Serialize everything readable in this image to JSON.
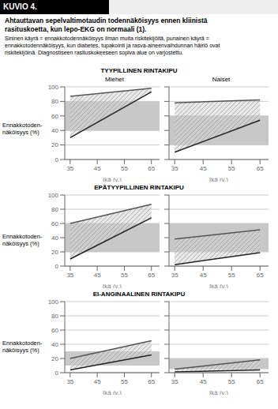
{
  "title": "Ahtauttavan sepelvaltimotaudin todennäköisyys ennen kliinistä\nrasituskoetta, kun lepo-EKG on normaali (1).",
  "subtitle": "Sininen käyrä = ennakkotodennäköisyys ilman muita riskitekijöitä, punainen käyrä =\nennakkotodennäköisyys, kun diabetes, tupakointi ja rasva-aineenvaihdunnan häiriö ovat\nriskitekijöinä. Diagnostiseen rasituskokeeseen sopiva alue on varjostettu.",
  "annotations": [
    "KUVIO 4."
  ],
  "chart_data": [
    {
      "type": "line",
      "title": "Miehet",
      "annotations": [
        "TYYPILLINEN RINTAKIPU"
      ],
      "ylabel": "Ennakkotoden-\nnäköisyys (%)",
      "xlabel": "Ikä (v.)",
      "x": [
        35,
        65
      ],
      "series": [
        {
          "color": "#222222",
          "values": [
            30,
            93
          ]
        },
        {
          "color": "#555555",
          "values": [
            87,
            98
          ]
        },
        {
          "type": "band",
          "color": "#c8c8c8",
          "range": [
            40,
            80
          ]
        }
      ],
      "xlim": [
        33,
        68
      ],
      "xticks": [
        35,
        45,
        55,
        65
      ],
      "ylim": [
        0,
        100
      ],
      "yticks": [
        0,
        20,
        40,
        60,
        80,
        100
      ],
      "grid": true
    },
    {
      "type": "line",
      "title": "Naiset",
      "xlabel": "Ikä (v.)",
      "tick_labels": "x",
      "x": [
        35,
        65
      ],
      "series": [
        {
          "color": "#222222",
          "values": [
            10,
            54
          ]
        },
        {
          "color": "#555555",
          "values": [
            78,
            82
          ]
        },
        {
          "type": "band",
          "color": "#c8c8c8",
          "range": [
            20,
            60
          ]
        }
      ],
      "xlim": [
        33,
        68
      ],
      "xticks": [
        35,
        45,
        55,
        65
      ],
      "ylim": [
        0,
        100
      ],
      "yticks": [
        0,
        20,
        40,
        60,
        80,
        100
      ],
      "grid": true
    },
    {
      "type": "line",
      "annotations": [
        "EPÄTYYPILLINEN RINTAKIPU"
      ],
      "ylabel": "Ennakkotoden-\nnäköisyys (%)",
      "xlabel": "Ikä (v.)",
      "x": [
        35,
        65
      ],
      "series": [
        {
          "color": "#222222",
          "values": [
            10,
            68
          ]
        },
        {
          "color": "#555555",
          "values": [
            60,
            87
          ]
        },
        {
          "type": "band",
          "color": "#c8c8c8",
          "range": [
            20,
            60
          ]
        }
      ],
      "xlim": [
        33,
        68
      ],
      "xticks": [
        35,
        45,
        55,
        65
      ],
      "ylim": [
        0,
        100
      ],
      "yticks": [
        0,
        20,
        40,
        60,
        80,
        100
      ],
      "grid": true
    },
    {
      "type": "line",
      "xlabel": "Ikä (v.)",
      "tick_labels": "x",
      "x": [
        35,
        65
      ],
      "series": [
        {
          "color": "#222222",
          "values": [
            2,
            19
          ]
        },
        {
          "color": "#555555",
          "values": [
            38,
            51
          ]
        },
        {
          "type": "band",
          "color": "#c8c8c8",
          "range": [
            20,
            60
          ]
        }
      ],
      "xlim": [
        33,
        68
      ],
      "xticks": [
        35,
        45,
        55,
        65
      ],
      "ylim": [
        0,
        100
      ],
      "yticks": [
        0,
        20,
        40,
        60,
        80,
        100
      ],
      "grid": true
    },
    {
      "type": "line",
      "annotations": [
        "EI-ANGINAALINEN RINTAKIPU"
      ],
      "ylabel": "Ennakkotoden-\nnäköisyys (%)",
      "xlabel": "Ikä (v.)",
      "x": [
        35,
        65
      ],
      "series": [
        {
          "color": "#222222",
          "values": [
            4,
            25
          ]
        },
        {
          "color": "#555555",
          "values": [
            20,
            45
          ]
        },
        {
          "type": "band",
          "color": "#c8c8c8",
          "range": [
            10,
            30
          ]
        }
      ],
      "xlim": [
        33,
        68
      ],
      "xticks": [
        35,
        45,
        55,
        65
      ],
      "ylim": [
        0,
        100
      ],
      "yticks": [
        0,
        20,
        40,
        60,
        80,
        100
      ],
      "grid": true
    },
    {
      "type": "line",
      "xlabel": "Ikä (v.)",
      "tick_labels": "x",
      "x": [
        35,
        65
      ],
      "series": [
        {
          "color": "#222222",
          "values": [
            1,
            4
          ]
        },
        {
          "color": "#555555",
          "values": [
            5,
            18
          ]
        },
        {
          "type": "band",
          "color": "#c8c8c8",
          "range": [
            5,
            20
          ]
        }
      ],
      "xlim": [
        33,
        68
      ],
      "xticks": [
        35,
        45,
        55,
        65
      ],
      "ylim": [
        0,
        100
      ],
      "yticks": [
        0,
        20,
        40,
        60,
        80,
        100
      ],
      "grid": true
    }
  ]
}
